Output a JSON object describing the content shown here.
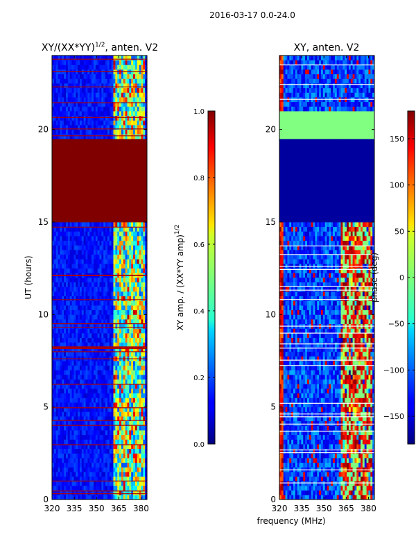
{
  "figure_title": "2016-03-17 0.0-24.0",
  "chart_data": [
    {
      "type": "heatmap",
      "title": "XY/(XX*YY)^{1/2}, anten. V2",
      "title_text": "XY/(XX*YY)",
      "title_sup": "1/2",
      "title_suffix": ", anten. V2",
      "xlabel": "",
      "ylabel": "UT (hours)",
      "xlim": [
        320,
        384
      ],
      "ylim": [
        0,
        24
      ],
      "xticks": [
        320,
        335,
        350,
        365,
        380
      ],
      "yticks": [
        0,
        5,
        10,
        15,
        20
      ],
      "colormap": "jet",
      "colorbar": {
        "label": "XY amp. / (XX*YY amp)",
        "label_sup": "1/2",
        "range": [
          0.0,
          1.0
        ],
        "ticks": [
          "0.0",
          "0.2",
          "0.4",
          "0.6",
          "0.8",
          "1.0"
        ]
      },
      "features": {
        "saturated_band_hours": [
          15.0,
          19.4
        ],
        "bright_freq_band_mhz": [
          361,
          382
        ],
        "background_level": 0.08
      }
    },
    {
      "type": "heatmap",
      "title": "XY, anten. V2",
      "xlabel": "frequency (MHz)",
      "ylabel": "",
      "xlim": [
        320,
        384
      ],
      "ylim": [
        0,
        24
      ],
      "xticks": [
        320,
        335,
        350,
        365,
        380
      ],
      "yticks": [
        0,
        5,
        10,
        15,
        20
      ],
      "colormap": "jet",
      "colorbar": {
        "label": "phase (deg)",
        "range": [
          -180,
          180
        ],
        "ticks": [
          "−150",
          "−100",
          "−50",
          "0",
          "50",
          "100",
          "150"
        ]
      },
      "features": {
        "constant_phase_band_hours": [
          19.5,
          21.1
        ],
        "low_phase_band_hours": [
          15.0,
          19.5
        ],
        "bright_freq_band_mhz": [
          361,
          382
        ]
      }
    }
  ],
  "colors": {
    "dark_red": "#800000",
    "dark_blue": "#00007f",
    "green_band": "#7dff7a"
  }
}
